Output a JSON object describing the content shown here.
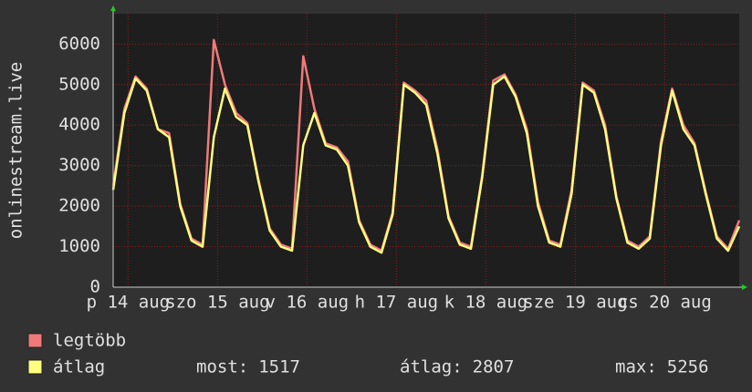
{
  "chart_data": {
    "type": "line",
    "y_label": "onlinestream.live",
    "x": [
      0,
      3,
      6,
      9,
      12,
      15,
      18,
      21,
      24,
      27,
      30,
      33,
      36,
      39,
      42,
      45,
      48,
      51,
      54,
      57,
      60,
      63,
      66,
      69,
      72,
      75,
      78,
      81,
      84,
      87,
      90,
      93,
      96,
      99,
      102,
      105,
      108,
      111,
      114,
      117,
      120,
      123,
      126,
      129,
      132,
      135,
      138,
      141,
      144,
      147,
      150,
      153,
      156,
      159,
      162,
      165,
      168
    ],
    "series": [
      {
        "name": "legtöbb",
        "color": "#f07a7a",
        "values": [
          2500,
          4400,
          5200,
          4900,
          3900,
          3800,
          2050,
          1200,
          1050,
          6100,
          5000,
          4300,
          4050,
          2650,
          1450,
          1050,
          950,
          5700,
          4400,
          3550,
          3450,
          3100,
          1650,
          1050,
          900,
          1850,
          5050,
          4850,
          4600,
          3400,
          1750,
          1100,
          1000,
          2750,
          5100,
          5250,
          4750,
          3900,
          2100,
          1150,
          1050,
          2400,
          5050,
          4850,
          4000,
          2250,
          1150,
          1000,
          1250,
          3600,
          4900,
          4000,
          3550,
          2350,
          1250,
          950,
          1650
        ]
      },
      {
        "name": "átlag",
        "color": "#ffff80",
        "values": [
          2400,
          4300,
          5150,
          4850,
          3900,
          3700,
          2000,
          1150,
          1000,
          3700,
          4900,
          4200,
          4000,
          2600,
          1400,
          1000,
          900,
          3500,
          4300,
          3500,
          3400,
          3000,
          1600,
          1000,
          850,
          1800,
          5000,
          4800,
          4500,
          3300,
          1700,
          1050,
          950,
          2700,
          5000,
          5200,
          4700,
          3800,
          2000,
          1100,
          1000,
          2300,
          5000,
          4800,
          3900,
          2200,
          1100,
          950,
          1200,
          3500,
          4850,
          3900,
          3500,
          2300,
          1200,
          900,
          1500
        ]
      }
    ],
    "xlim": [
      0,
      168
    ],
    "xticks": [
      {
        "value": 4,
        "label": "p 14 aug"
      },
      {
        "value": 28,
        "label": "szo 15 aug"
      },
      {
        "value": 52,
        "label": "v 16 aug"
      },
      {
        "value": 76,
        "label": "h 17 aug"
      },
      {
        "value": 100,
        "label": "k 18 aug"
      },
      {
        "value": 124,
        "label": "sze 19 aug"
      },
      {
        "value": 148,
        "label": "cs 20 aug"
      }
    ],
    "ylim": [
      0,
      6750
    ],
    "yticks": [
      0,
      1000,
      2000,
      3000,
      4000,
      5000,
      6000
    ],
    "grid": true,
    "summary": [
      {
        "label": "most:",
        "value": 1517
      },
      {
        "label": "átlag:",
        "value": 2807
      },
      {
        "label": "max:",
        "value": 5256
      }
    ]
  }
}
